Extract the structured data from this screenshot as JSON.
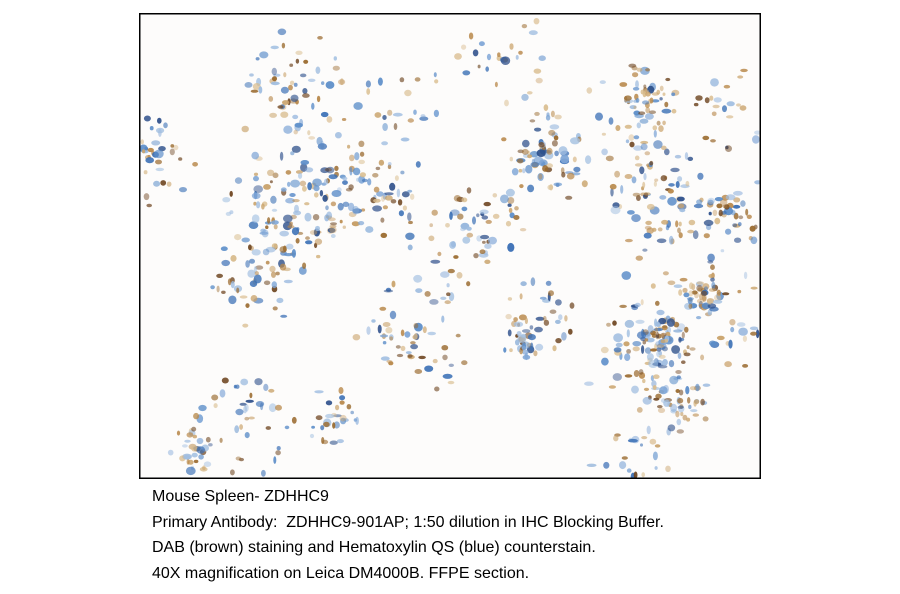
{
  "caption": {
    "lines": [
      "Mouse Spleen- ZDHHC9",
      "Primary Antibody:  ZDHHC9-901AP; 1:50 dilution in IHC Blocking Buffer.",
      "DAB (brown) staining and Hematoxylin QS (blue) counterstain.",
      "40X magnification on Leica DM4000B. FFPE section."
    ]
  }
}
